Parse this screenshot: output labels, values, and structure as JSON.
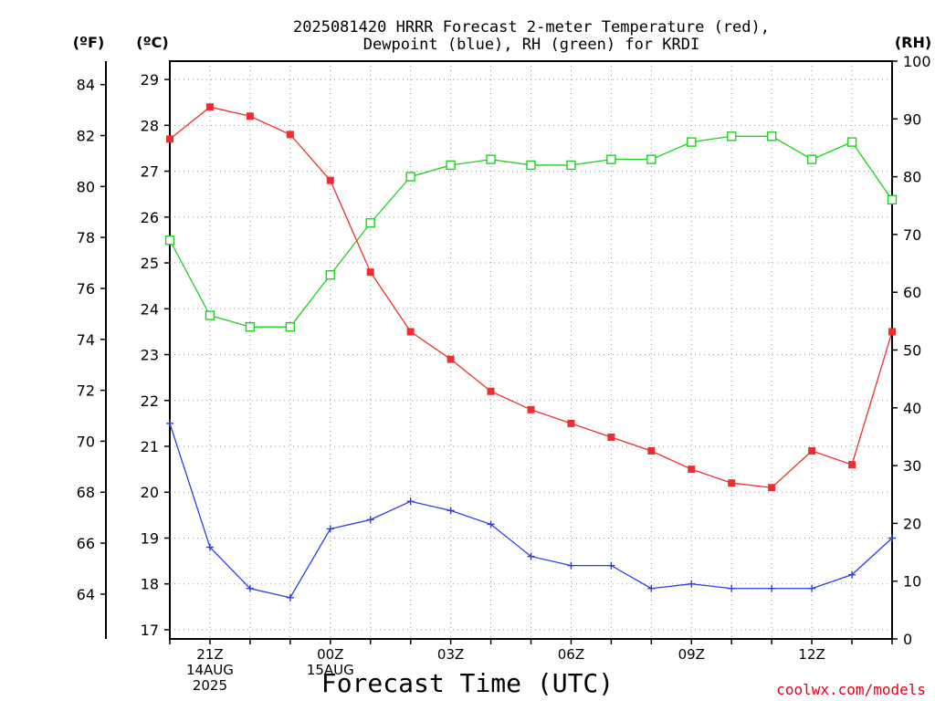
{
  "title": {
    "line1": "2025081420 HRRR Forecast 2-meter Temperature (red),",
    "line2": "Dewpoint (blue), RH (green) for KRDI"
  },
  "units": {
    "fahrenheit": "(ºF)",
    "celsius": "(ºC)",
    "rh": "(RH)"
  },
  "credit": "coolwx.com/models",
  "colors": {
    "temperature": "#ee2e2e",
    "dewpoint": "#2a3ee6",
    "rh": "#20d020",
    "grid": "#9a9a9a",
    "credit": "#e0001b"
  },
  "chart_data": {
    "type": "line",
    "title": "2025081420 HRRR Forecast 2-meter Temperature (red), Dewpoint (blue), RH (green) for KRDI",
    "xlabel": "Forecast Time (UTC)",
    "x": [
      "20Z",
      "21Z",
      "22Z",
      "23Z",
      "00Z",
      "01Z",
      "02Z",
      "03Z",
      "04Z",
      "05Z",
      "06Z",
      "07Z",
      "08Z",
      "09Z",
      "10Z",
      "11Z",
      "12Z",
      "13Z",
      "14Z"
    ],
    "x_tick_labels": [
      {
        "at": "21Z",
        "lines": [
          "21Z",
          "14AUG",
          "2025"
        ]
      },
      {
        "at": "00Z",
        "lines": [
          "00Z",
          "15AUG"
        ]
      },
      {
        "at": "03Z",
        "lines": [
          "03Z"
        ]
      },
      {
        "at": "06Z",
        "lines": [
          "06Z"
        ]
      },
      {
        "at": "09Z",
        "lines": [
          "09Z"
        ]
      },
      {
        "at": "12Z",
        "lines": [
          "12Z"
        ]
      }
    ],
    "axes": {
      "celsius": {
        "range": [
          16.8,
          29.4
        ],
        "ticks": [
          17,
          18,
          19,
          20,
          21,
          22,
          23,
          24,
          25,
          26,
          27,
          28,
          29
        ]
      },
      "fahrenheit": {
        "ticks": [
          64,
          66,
          68,
          70,
          72,
          74,
          76,
          78,
          80,
          82,
          84
        ]
      },
      "rh": {
        "range": [
          0,
          100
        ],
        "ticks": [
          0,
          10,
          20,
          30,
          40,
          50,
          60,
          70,
          80,
          90,
          100
        ]
      }
    },
    "grid": true,
    "series": [
      {
        "name": "Temperature",
        "axis": "celsius",
        "marker": "filled-square",
        "values": [
          27.7,
          28.4,
          28.2,
          27.8,
          26.8,
          24.8,
          23.5,
          22.9,
          22.2,
          21.8,
          21.5,
          21.2,
          20.9,
          20.5,
          20.2,
          20.1,
          20.9,
          20.6,
          23.5
        ]
      },
      {
        "name": "Dewpoint",
        "axis": "celsius",
        "marker": "plus",
        "values": [
          21.5,
          18.8,
          17.9,
          17.7,
          19.2,
          19.4,
          19.8,
          19.6,
          19.3,
          18.6,
          18.4,
          18.4,
          17.9,
          18.0,
          17.9,
          17.9,
          17.9,
          18.2,
          19.0
        ]
      },
      {
        "name": "RH",
        "axis": "rh",
        "marker": "open-square",
        "values": [
          69,
          56,
          54,
          54,
          63,
          72,
          80,
          82,
          83,
          82,
          82,
          83,
          83,
          86,
          87,
          87,
          83,
          86,
          76
        ]
      }
    ]
  }
}
